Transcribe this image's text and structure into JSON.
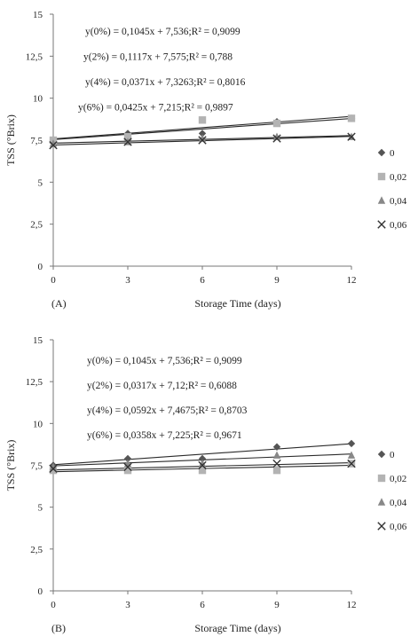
{
  "chart_data": [
    {
      "type": "scatter",
      "panel_label": "(A)",
      "xlabel": "Storage Time (days)",
      "ylabel": "TSS (°Brix)",
      "xlim": [
        0,
        12
      ],
      "ylim": [
        0,
        15
      ],
      "x_ticks": [
        "0",
        "3",
        "6",
        "9",
        "12"
      ],
      "y_ticks": [
        "0",
        "2,5",
        "5",
        "7,5",
        "10",
        "12,5",
        "15"
      ],
      "grid": false,
      "legend_position": "right",
      "x": [
        0,
        3,
        6,
        9,
        12
      ],
      "series": [
        {
          "name": "0",
          "marker": "diamond",
          "color": "#555555",
          "values": [
            7.5,
            7.9,
            7.9,
            8.6,
            8.8
          ],
          "trend": {
            "slope": 0.1045,
            "intercept": 7.536
          }
        },
        {
          "name": "0,02",
          "marker": "square",
          "color": "#b3b3b3",
          "values": [
            7.5,
            7.7,
            8.7,
            8.5,
            8.8
          ],
          "trend": {
            "slope": 0.1117,
            "intercept": 7.575
          }
        },
        {
          "name": "0,04",
          "marker": "triangle",
          "color": "#888888",
          "values": [
            7.3,
            7.4,
            7.6,
            7.7,
            7.7
          ],
          "trend": {
            "slope": 0.0371,
            "intercept": 7.3263
          }
        },
        {
          "name": "0,06",
          "marker": "x",
          "color": "#333333",
          "values": [
            7.2,
            7.4,
            7.5,
            7.6,
            7.7
          ],
          "trend": {
            "slope": 0.0425,
            "intercept": 7.215
          }
        }
      ],
      "annotations": [
        "y(0%) = 0,1045x + 7,536;R² = 0,9099",
        "y(2%) = 0,1117x + 7,575;R² = 0,788",
        "y(4%) = 0,0371x + 7,3263;R² = 0,8016",
        "y(6%) = 0,0425x + 7,215;R² = 0,9897"
      ]
    },
    {
      "type": "scatter",
      "panel_label": "(B)",
      "xlabel": "Storage Time (days)",
      "ylabel": "TSS (°Brix)",
      "xlim": [
        0,
        12
      ],
      "ylim": [
        0,
        15
      ],
      "x_ticks": [
        "0",
        "3",
        "6",
        "9",
        "12"
      ],
      "y_ticks": [
        "0",
        "2,5",
        "5",
        "7,5",
        "10",
        "12,5",
        "15"
      ],
      "grid": false,
      "legend_position": "right",
      "x": [
        0,
        3,
        6,
        9,
        12
      ],
      "series": [
        {
          "name": "0",
          "marker": "diamond",
          "color": "#555555",
          "values": [
            7.5,
            7.9,
            7.9,
            8.6,
            8.8
          ],
          "trend": {
            "slope": 0.1045,
            "intercept": 7.536
          }
        },
        {
          "name": "0,02",
          "marker": "square",
          "color": "#b3b3b3",
          "values": [
            7.2,
            7.2,
            7.2,
            7.2,
            7.6
          ],
          "trend": {
            "slope": 0.0317,
            "intercept": 7.12
          }
        },
        {
          "name": "0,04",
          "marker": "triangle",
          "color": "#888888",
          "values": [
            7.4,
            7.6,
            7.6,
            8.1,
            8.1
          ],
          "trend": {
            "slope": 0.0592,
            "intercept": 7.4675
          }
        },
        {
          "name": "0,06",
          "marker": "x",
          "color": "#333333",
          "values": [
            7.3,
            7.4,
            7.5,
            7.6,
            7.6
          ],
          "trend": {
            "slope": 0.0358,
            "intercept": 7.225
          }
        }
      ],
      "annotations": [
        "y(0%) = 0,1045x + 7,536;R² = 0,9099",
        "y(2%) = 0,0317x + 7,12;R² = 0,6088",
        "y(4%) = 0,0592x + 7,4675;R² = 0,8703",
        "y(6%) = 0,0358x + 7,225;R² = 0,9671"
      ]
    }
  ]
}
